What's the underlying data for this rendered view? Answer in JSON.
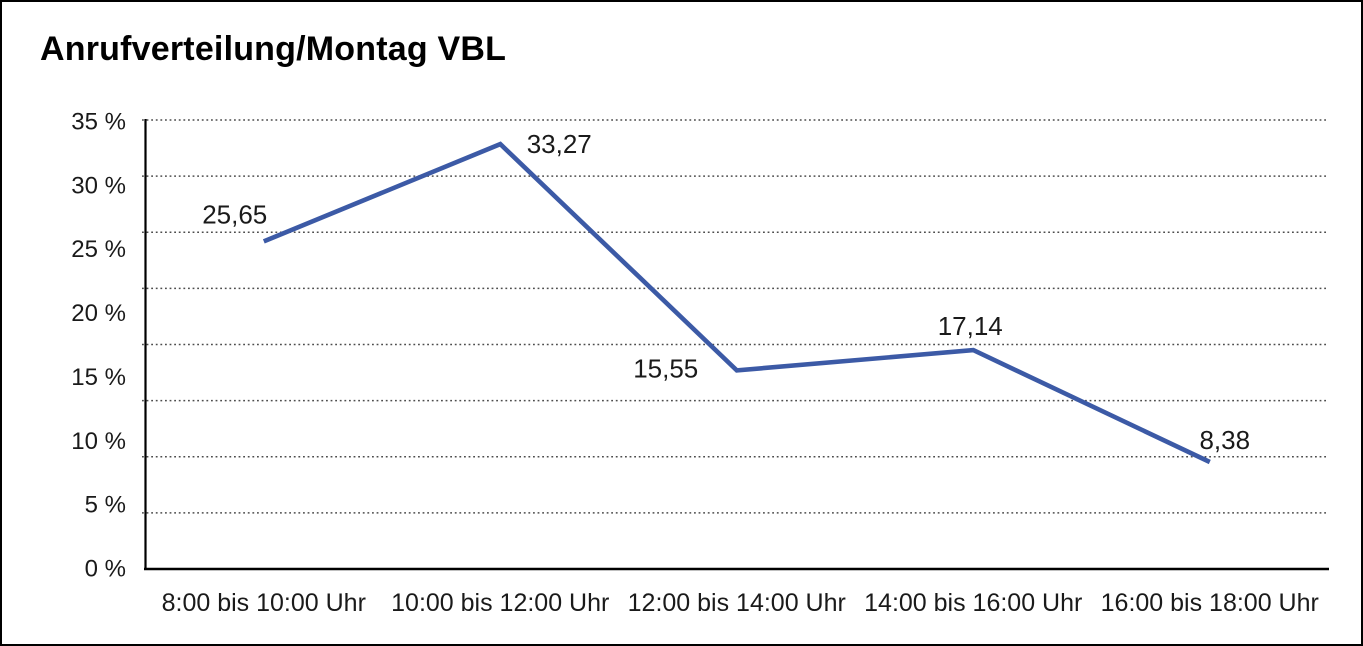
{
  "title": "Anrufverteilung/Montag VBL",
  "colors": {
    "line": "#3C5AA6",
    "axis": "#000000",
    "grid": "#4d4d4d",
    "text": "#1a1a1a",
    "background": "#ffffff",
    "border": "#000000"
  },
  "chart_data": {
    "type": "line",
    "title": "Anrufverteilung/Montag VBL",
    "categories": [
      "8:00 bis 10:00 Uhr",
      "10:00 bis 12:00 Uhr",
      "12:00 bis 14:00 Uhr",
      "14:00 bis 16:00 Uhr",
      "16:00 bis 18:00 Uhr"
    ],
    "series": [
      {
        "name": "Anrufverteilung Montag VBL",
        "values": [
          25.65,
          33.27,
          15.55,
          17.14,
          8.38
        ],
        "value_labels": [
          "25,65",
          "33,27",
          "15,55",
          "17,14",
          "8,38"
        ]
      }
    ],
    "xlabel": "",
    "ylabel": "",
    "ylim": [
      0,
      35
    ],
    "y_tick_step": 5,
    "y_tick_labels": [
      "35 %",
      "30 %",
      "25 %",
      "20 %",
      "15 %",
      "10 %",
      "5 %",
      "0 %"
    ],
    "unit": "%",
    "grid": "horizontal-dotted",
    "legend": "none",
    "line_color": "#3C5AA6"
  }
}
